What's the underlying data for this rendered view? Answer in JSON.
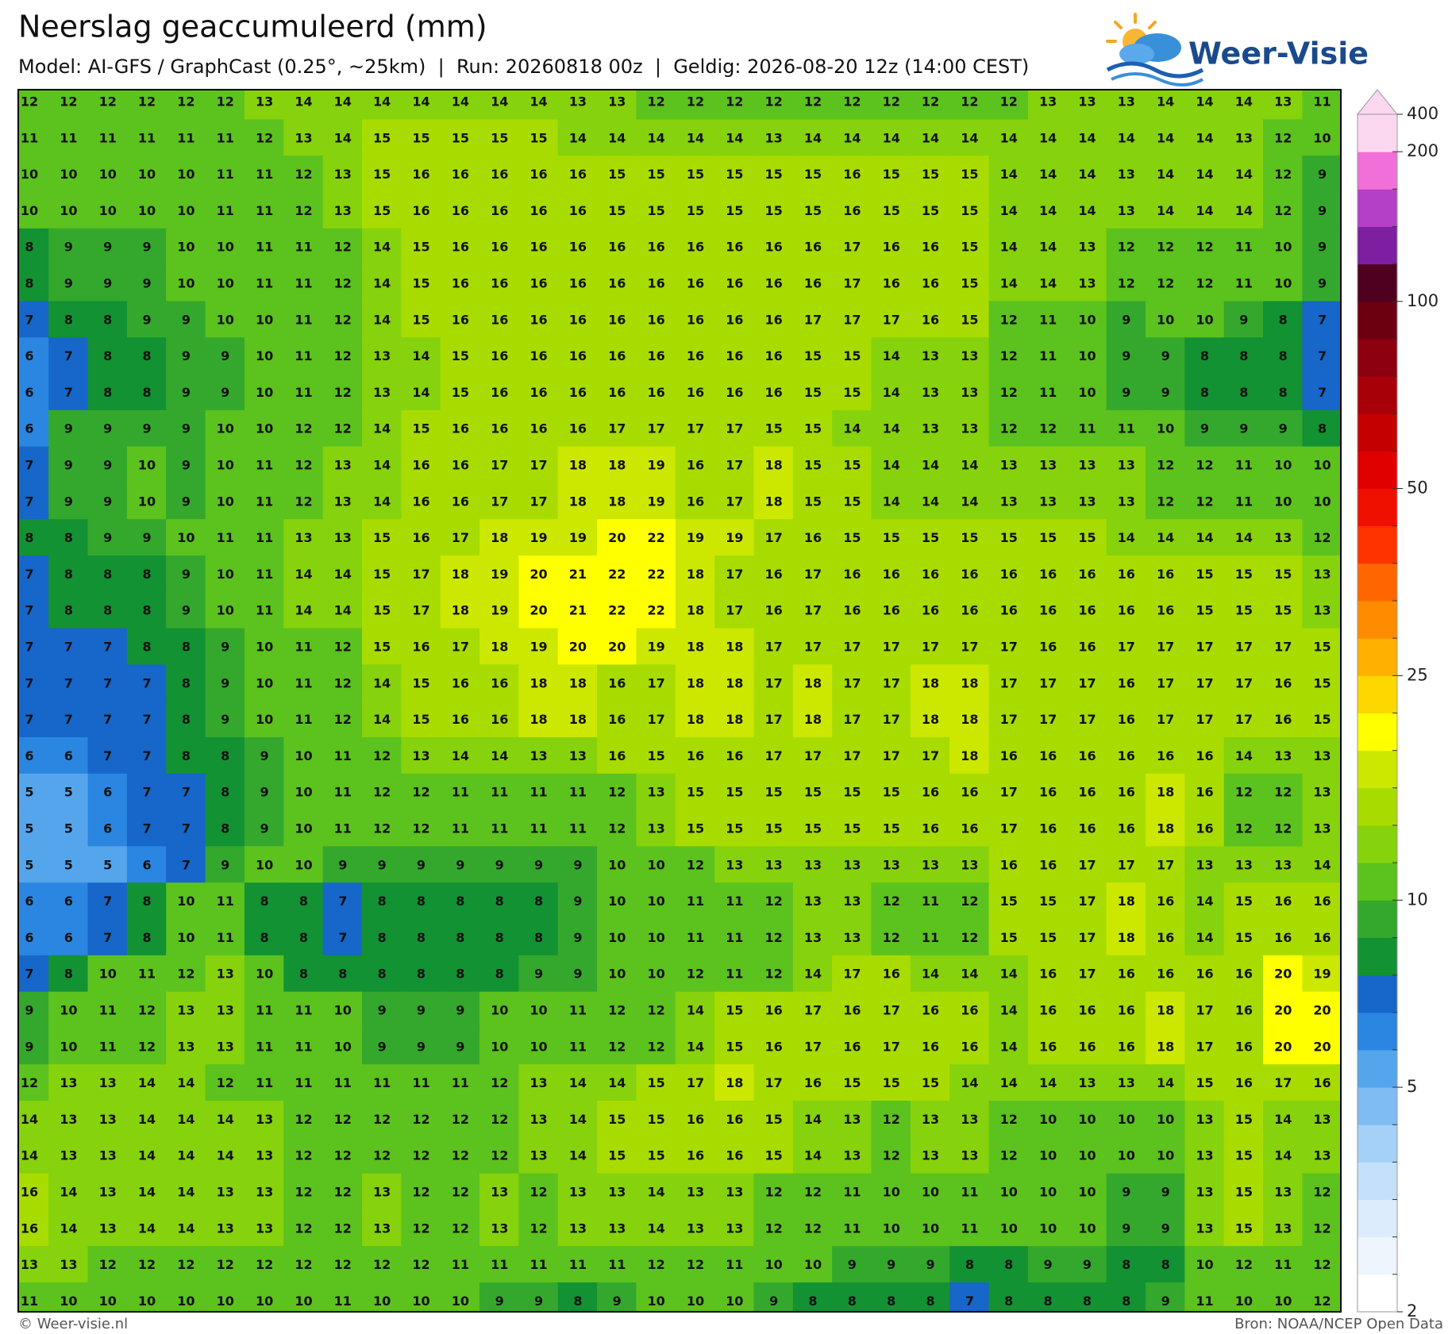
{
  "header": {
    "title": "Neerslag geaccumuleerd (mm)",
    "subtitle": "Model: AI-GFS / GraphCast (0.25°, ~25km)  |  Run: 20260818 00z  |  Geldig: 2026-08-20 12z (14:00 CEST)"
  },
  "logo": {
    "text": "Weer-Visie"
  },
  "map": {
    "grid": [
      [
        12,
        12,
        12,
        12,
        12,
        12,
        13,
        14,
        14,
        14,
        14,
        14,
        14,
        14,
        13,
        13,
        12,
        12,
        12,
        12,
        12,
        12,
        12,
        12,
        12,
        12,
        13,
        13,
        13,
        14,
        14,
        14,
        13,
        11
      ],
      [
        11,
        11,
        11,
        11,
        11,
        11,
        12,
        13,
        14,
        15,
        15,
        15,
        15,
        15,
        14,
        14,
        14,
        14,
        14,
        13,
        14,
        14,
        14,
        14,
        14,
        14,
        14,
        14,
        14,
        14,
        14,
        13,
        12,
        10
      ],
      [
        10,
        10,
        10,
        10,
        10,
        11,
        11,
        12,
        13,
        15,
        16,
        16,
        16,
        16,
        16,
        15,
        15,
        15,
        15,
        15,
        15,
        16,
        15,
        15,
        15,
        14,
        14,
        14,
        13,
        14,
        14,
        14,
        12,
        9
      ],
      [
        10,
        10,
        10,
        10,
        10,
        11,
        11,
        12,
        13,
        15,
        16,
        16,
        16,
        16,
        16,
        15,
        15,
        15,
        15,
        15,
        15,
        16,
        15,
        15,
        15,
        14,
        14,
        14,
        13,
        14,
        14,
        14,
        12,
        9
      ],
      [
        8,
        9,
        9,
        9,
        10,
        10,
        11,
        11,
        12,
        14,
        15,
        16,
        16,
        16,
        16,
        16,
        16,
        16,
        16,
        16,
        16,
        17,
        16,
        16,
        15,
        14,
        14,
        13,
        12,
        12,
        12,
        11,
        10,
        9
      ],
      [
        8,
        9,
        9,
        9,
        10,
        10,
        11,
        11,
        12,
        14,
        15,
        16,
        16,
        16,
        16,
        16,
        16,
        16,
        16,
        16,
        16,
        17,
        16,
        16,
        15,
        14,
        14,
        13,
        12,
        12,
        12,
        11,
        10,
        9
      ],
      [
        7,
        8,
        8,
        9,
        9,
        10,
        10,
        11,
        12,
        14,
        15,
        16,
        16,
        16,
        16,
        16,
        16,
        16,
        16,
        16,
        17,
        17,
        17,
        16,
        15,
        12,
        11,
        10,
        9,
        10,
        10,
        9,
        8,
        7
      ],
      [
        6,
        7,
        8,
        8,
        9,
        9,
        10,
        11,
        12,
        13,
        14,
        15,
        16,
        16,
        16,
        16,
        16,
        16,
        16,
        16,
        15,
        15,
        14,
        13,
        13,
        12,
        11,
        10,
        9,
        9,
        8,
        8,
        8,
        7
      ],
      [
        6,
        7,
        8,
        8,
        9,
        9,
        10,
        11,
        12,
        13,
        14,
        15,
        16,
        16,
        16,
        16,
        16,
        16,
        16,
        16,
        15,
        15,
        14,
        13,
        13,
        12,
        11,
        10,
        9,
        9,
        8,
        8,
        8,
        7
      ],
      [
        6,
        9,
        9,
        9,
        9,
        10,
        10,
        12,
        12,
        14,
        15,
        16,
        16,
        16,
        16,
        17,
        17,
        17,
        17,
        15,
        15,
        14,
        14,
        13,
        13,
        12,
        12,
        11,
        11,
        10,
        9,
        9,
        9,
        8
      ],
      [
        7,
        9,
        9,
        10,
        9,
        10,
        11,
        12,
        13,
        14,
        16,
        16,
        17,
        17,
        18,
        18,
        19,
        16,
        17,
        18,
        15,
        15,
        14,
        14,
        14,
        13,
        13,
        13,
        13,
        12,
        12,
        11,
        10,
        10
      ],
      [
        7,
        9,
        9,
        10,
        9,
        10,
        11,
        12,
        13,
        14,
        16,
        16,
        17,
        17,
        18,
        18,
        19,
        16,
        17,
        18,
        15,
        15,
        14,
        14,
        14,
        13,
        13,
        13,
        13,
        12,
        12,
        11,
        10,
        10
      ],
      [
        8,
        8,
        9,
        9,
        10,
        11,
        11,
        13,
        13,
        15,
        16,
        17,
        18,
        19,
        19,
        20,
        22,
        19,
        19,
        17,
        16,
        15,
        15,
        15,
        15,
        15,
        15,
        15,
        14,
        14,
        14,
        14,
        13,
        12
      ],
      [
        7,
        8,
        8,
        8,
        9,
        10,
        11,
        14,
        14,
        15,
        17,
        18,
        19,
        20,
        21,
        22,
        22,
        18,
        17,
        16,
        17,
        16,
        16,
        16,
        16,
        16,
        16,
        16,
        16,
        16,
        15,
        15,
        15,
        13
      ],
      [
        7,
        8,
        8,
        8,
        9,
        10,
        11,
        14,
        14,
        15,
        17,
        18,
        19,
        20,
        21,
        22,
        22,
        18,
        17,
        16,
        17,
        16,
        16,
        16,
        16,
        16,
        16,
        16,
        16,
        16,
        15,
        15,
        15,
        13
      ],
      [
        7,
        7,
        7,
        8,
        8,
        9,
        10,
        11,
        12,
        15,
        16,
        17,
        18,
        19,
        20,
        20,
        19,
        18,
        18,
        17,
        17,
        17,
        17,
        17,
        17,
        17,
        16,
        16,
        17,
        17,
        17,
        17,
        17,
        15
      ],
      [
        7,
        7,
        7,
        7,
        8,
        9,
        10,
        11,
        12,
        14,
        15,
        16,
        16,
        18,
        18,
        16,
        17,
        18,
        18,
        17,
        18,
        17,
        17,
        18,
        18,
        17,
        17,
        17,
        16,
        17,
        17,
        17,
        16,
        15
      ],
      [
        7,
        7,
        7,
        7,
        8,
        9,
        10,
        11,
        12,
        14,
        15,
        16,
        16,
        18,
        18,
        16,
        17,
        18,
        18,
        17,
        18,
        17,
        17,
        18,
        18,
        17,
        17,
        17,
        16,
        17,
        17,
        17,
        16,
        15
      ],
      [
        6,
        6,
        7,
        7,
        8,
        8,
        9,
        10,
        11,
        12,
        13,
        14,
        14,
        13,
        13,
        16,
        15,
        16,
        16,
        17,
        17,
        17,
        17,
        17,
        18,
        16,
        16,
        16,
        16,
        16,
        16,
        14,
        13,
        13
      ],
      [
        5,
        5,
        6,
        7,
        7,
        8,
        9,
        10,
        11,
        12,
        12,
        11,
        11,
        11,
        11,
        12,
        13,
        15,
        15,
        15,
        15,
        15,
        15,
        16,
        16,
        17,
        16,
        16,
        16,
        18,
        16,
        12,
        12,
        13
      ],
      [
        5,
        5,
        6,
        7,
        7,
        8,
        9,
        10,
        11,
        12,
        12,
        11,
        11,
        11,
        11,
        12,
        13,
        15,
        15,
        15,
        15,
        15,
        15,
        16,
        16,
        17,
        16,
        16,
        16,
        18,
        16,
        12,
        12,
        13
      ],
      [
        5,
        5,
        5,
        6,
        7,
        9,
        10,
        10,
        9,
        9,
        9,
        9,
        9,
        9,
        9,
        10,
        10,
        12,
        13,
        13,
        13,
        13,
        13,
        13,
        13,
        16,
        16,
        17,
        17,
        17,
        13,
        13,
        13,
        14
      ],
      [
        6,
        6,
        7,
        8,
        10,
        11,
        8,
        8,
        7,
        8,
        8,
        8,
        8,
        8,
        9,
        10,
        10,
        11,
        11,
        12,
        13,
        13,
        12,
        11,
        12,
        15,
        15,
        17,
        18,
        16,
        14,
        15,
        16,
        16
      ],
      [
        6,
        6,
        7,
        8,
        10,
        11,
        8,
        8,
        7,
        8,
        8,
        8,
        8,
        8,
        9,
        10,
        10,
        11,
        11,
        12,
        13,
        13,
        12,
        11,
        12,
        15,
        15,
        17,
        18,
        16,
        14,
        15,
        16,
        16
      ],
      [
        7,
        8,
        10,
        11,
        12,
        13,
        10,
        8,
        8,
        8,
        8,
        8,
        8,
        9,
        9,
        10,
        10,
        12,
        11,
        12,
        14,
        17,
        16,
        14,
        14,
        14,
        16,
        17,
        16,
        16,
        16,
        16,
        20,
        19
      ],
      [
        9,
        10,
        11,
        12,
        13,
        13,
        11,
        11,
        10,
        9,
        9,
        9,
        10,
        10,
        11,
        12,
        12,
        14,
        15,
        16,
        17,
        16,
        17,
        16,
        16,
        14,
        16,
        16,
        16,
        18,
        17,
        16,
        20,
        20
      ],
      [
        9,
        10,
        11,
        12,
        13,
        13,
        11,
        11,
        10,
        9,
        9,
        9,
        10,
        10,
        11,
        12,
        12,
        14,
        15,
        16,
        17,
        16,
        17,
        16,
        16,
        14,
        16,
        16,
        16,
        18,
        17,
        16,
        20,
        20
      ],
      [
        12,
        13,
        13,
        14,
        14,
        12,
        11,
        11,
        11,
        11,
        11,
        11,
        12,
        13,
        14,
        14,
        15,
        17,
        18,
        17,
        16,
        15,
        15,
        15,
        14,
        14,
        14,
        13,
        13,
        14,
        15,
        16,
        17,
        16
      ],
      [
        14,
        13,
        13,
        14,
        14,
        14,
        13,
        12,
        12,
        12,
        12,
        12,
        12,
        13,
        14,
        15,
        15,
        16,
        16,
        15,
        14,
        13,
        12,
        13,
        13,
        12,
        10,
        10,
        10,
        10,
        13,
        15,
        14,
        13
      ],
      [
        14,
        13,
        13,
        14,
        14,
        14,
        13,
        12,
        12,
        12,
        12,
        12,
        12,
        13,
        14,
        15,
        15,
        16,
        16,
        15,
        14,
        13,
        12,
        13,
        13,
        12,
        10,
        10,
        10,
        10,
        13,
        15,
        14,
        13
      ],
      [
        16,
        14,
        13,
        14,
        14,
        13,
        13,
        12,
        12,
        13,
        12,
        12,
        13,
        12,
        13,
        13,
        14,
        13,
        13,
        12,
        12,
        11,
        10,
        10,
        11,
        10,
        10,
        10,
        9,
        9,
        13,
        15,
        13,
        12
      ],
      [
        16,
        14,
        13,
        14,
        14,
        13,
        13,
        12,
        12,
        13,
        12,
        12,
        13,
        12,
        13,
        13,
        14,
        13,
        13,
        12,
        12,
        11,
        10,
        10,
        11,
        10,
        10,
        10,
        9,
        9,
        13,
        15,
        13,
        12
      ],
      [
        13,
        13,
        12,
        12,
        12,
        12,
        12,
        12,
        12,
        12,
        12,
        11,
        11,
        11,
        11,
        11,
        12,
        12,
        11,
        10,
        10,
        9,
        9,
        9,
        8,
        8,
        9,
        9,
        8,
        8,
        10,
        12,
        11,
        12
      ],
      [
        11,
        10,
        10,
        10,
        10,
        10,
        10,
        10,
        11,
        10,
        10,
        10,
        9,
        9,
        8,
        9,
        10,
        10,
        10,
        9,
        8,
        8,
        8,
        8,
        7,
        8,
        8,
        8,
        8,
        9,
        11,
        10,
        10,
        12
      ]
    ]
  },
  "colorbar": {
    "levels": [
      2,
      2.5,
      3,
      3.5,
      4,
      4.5,
      5,
      6,
      7,
      8,
      9,
      10,
      12.5,
      15,
      17.5,
      20,
      22.5,
      25,
      30,
      35,
      40,
      45,
      50,
      60,
      70,
      80,
      90,
      100,
      125,
      150,
      175,
      200,
      400
    ],
    "colors": [
      "#ffffff",
      "#eef5fd",
      "#dcecfc",
      "#c4e0fa",
      "#a5d0f7",
      "#7ebcf3",
      "#55a5ec",
      "#2a86e0",
      "#1766c9",
      "#129232",
      "#34a82c",
      "#5cc21e",
      "#86d20c",
      "#a8dc00",
      "#cce800",
      "#ffff00",
      "#ffd700",
      "#ffb000",
      "#ff8c00",
      "#ff6600",
      "#ff3300",
      "#f01000",
      "#e00000",
      "#c40000",
      "#a80008",
      "#8c0010",
      "#6d0010",
      "#4f0020",
      "#7d1fa0",
      "#b440c8",
      "#f06fd8",
      "#fcd7f0"
    ],
    "ticks": [
      2,
      5,
      10,
      25,
      50,
      100,
      200,
      400
    ]
  },
  "footer": {
    "left": "© Weer-visie.nl",
    "right": "Bron: NOAA/NCEP Open Data"
  }
}
